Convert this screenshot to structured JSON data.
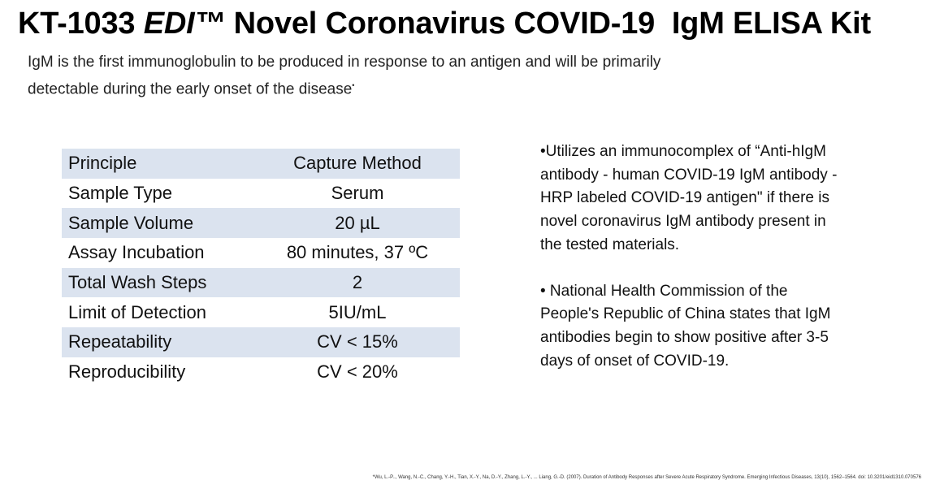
{
  "title": {
    "code": "KT-1033",
    "brand": "EDI™",
    "name": "Novel Coronavirus COVID-19  IgM ELISA Kit"
  },
  "subtitle": {
    "line1": "IgM is the first immunoglobulin to be produced in response to an antigen and will be primarily",
    "line2": "detectable during the early onset of the disease",
    "marker": "•"
  },
  "specs": [
    {
      "parameter": "Principle",
      "value": "Capture Method"
    },
    {
      "parameter": "Sample Type",
      "value": "Serum"
    },
    {
      "parameter": "Sample Volume",
      "value": "20 µL"
    },
    {
      "parameter": "Assay Incubation",
      "value": "80 minutes, 37 ºC"
    },
    {
      "parameter": "Total Wash Steps",
      "value": "2"
    },
    {
      "parameter": "Limit of Detection",
      "value": "5IU/mL"
    },
    {
      "parameter": "Repeatability",
      "value": "CV < 15%"
    },
    {
      "parameter": "Reproducibility",
      "value": "CV < 20%"
    }
  ],
  "notes": [
    "•Utilizes an immunocomplex of “Anti-hIgM antibody - human COVID-19 IgM antibody - HRP labeled COVID-19 antigen\" if there is novel coronavirus IgM antibody present in the tested materials.",
    "• National Health Commission of the People's Republic of China states that IgM antibodies begin to show positive after 3-5 days of onset of COVID-19."
  ],
  "footnote": "*Wu, L.-P.., Wang, N.-C., Chang, Y.-H., Tian, X.-Y., Na, D.-Y., Zhang, L.-Y., ... Liang, G.-D. (2007). Duration of Antibody Responses after Severe Acute Respiratory Syndrome. Emerging Infectious Diseases, 13(10), 1562–1564. doi: 10.3201/eid1310.070576",
  "colors": {
    "table_shade": "#dbe3ef",
    "text": "#000000"
  }
}
